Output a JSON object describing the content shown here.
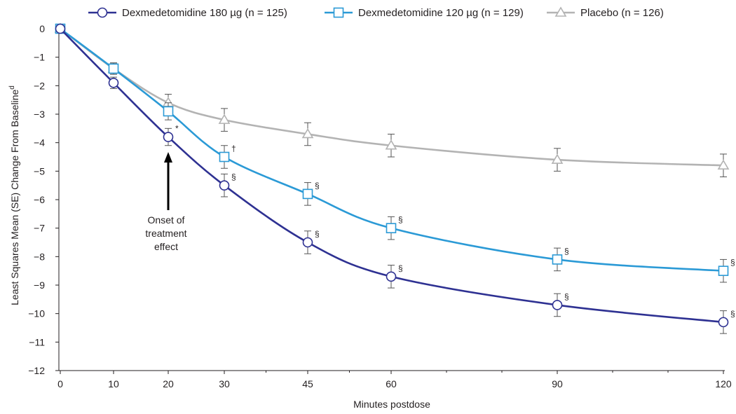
{
  "chart_data": {
    "type": "line",
    "x": [
      0,
      10,
      20,
      30,
      45,
      60,
      90,
      120
    ],
    "xlabel": "Minutes postdose",
    "ylabel": "Least Squares Mean (SE) Change From Baseline",
    "ylabel_superscript": "d",
    "ylim": [
      -12,
      0
    ],
    "y_ticks": [
      0,
      -1,
      -2,
      -3,
      -4,
      -5,
      -6,
      -7,
      -8,
      -9,
      -10,
      -11,
      -12
    ],
    "x_ticks": [
      "0",
      "10",
      "20",
      "30",
      "45",
      "60",
      "90",
      "120"
    ],
    "legend_position": "top",
    "series": [
      {
        "name": "Dexmedetomidine 180 µg (n = 125)",
        "color": "#2e3192",
        "marker": "circle",
        "values": [
          0,
          -1.9,
          -3.8,
          -5.5,
          -7.5,
          -8.7,
          -9.7,
          -10.3
        ],
        "se": [
          0,
          0.2,
          0.3,
          0.4,
          0.4,
          0.4,
          0.4,
          0.4
        ],
        "marks": [
          "",
          "",
          "*",
          "§",
          "§",
          "§",
          "§",
          "§"
        ]
      },
      {
        "name": "Dexmedetomidine 120 µg (n = 129)",
        "color": "#2b9ad6",
        "marker": "square",
        "values": [
          0,
          -1.4,
          -2.9,
          -4.5,
          -5.8,
          -7.0,
          -8.1,
          -8.5
        ],
        "se": [
          0,
          0.2,
          0.3,
          0.4,
          0.4,
          0.4,
          0.4,
          0.4
        ],
        "marks": [
          "",
          "",
          "",
          "†",
          "§",
          "§",
          "§",
          "§"
        ]
      },
      {
        "name": "Placebo (n = 126)",
        "color": "#b3b3b3",
        "marker": "triangle",
        "values": [
          0,
          -1.4,
          -2.6,
          -3.2,
          -3.7,
          -4.1,
          -4.6,
          -4.8
        ],
        "se": [
          0,
          0.2,
          0.3,
          0.4,
          0.4,
          0.4,
          0.4,
          0.4
        ],
        "marks": [
          "",
          "",
          "",
          "",
          "",
          "",
          "",
          ""
        ]
      }
    ],
    "annotation": {
      "lines": [
        "Onset of",
        "treatment",
        "effect"
      ],
      "x": 20,
      "y": -3.8
    }
  }
}
